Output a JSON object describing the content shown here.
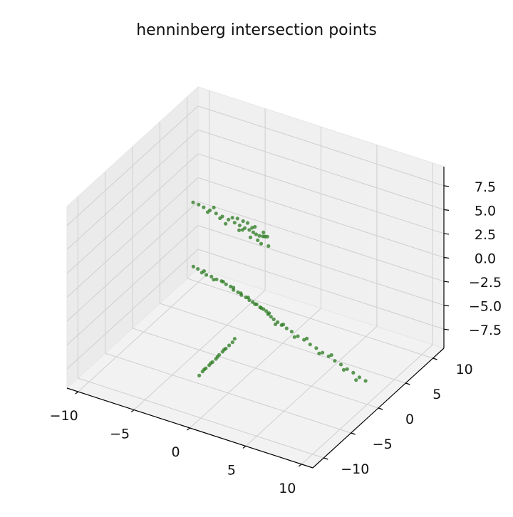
{
  "chart_data": {
    "type": "scatter",
    "title": "henninberg intersection points",
    "xlabel": "",
    "ylabel": "",
    "zlabel": "",
    "projection": "3d",
    "grid": true,
    "marker_color": "#2a7a1f",
    "xlim": [
      -11,
      11
    ],
    "ylim": [
      -12,
      12
    ],
    "zlim": [
      -9.5,
      9.5
    ],
    "x_ticks": [
      "−10",
      "−5",
      "0",
      "5",
      "10"
    ],
    "x_tick_values": [
      -10,
      -5,
      0,
      5,
      10
    ],
    "y_ticks": [
      "−10",
      "−5",
      "0",
      "5",
      "10"
    ],
    "y_tick_values": [
      -10,
      -5,
      0,
      5,
      10
    ],
    "z_ticks": [
      "−7.5",
      "−5.0",
      "−2.5",
      "0.0",
      "2.5",
      "5.0",
      "7.5"
    ],
    "z_tick_values": [
      -7.5,
      -5,
      -2.5,
      0,
      2.5,
      5,
      7.5
    ],
    "series": [
      {
        "values": [
          [
            -10.2,
            9.5,
            -7.7
          ],
          [
            -9.6,
            9.1,
            -7.5
          ],
          [
            -9.0,
            8.6,
            -7.4
          ],
          [
            -8.4,
            8.2,
            -7.2
          ],
          [
            -7.8,
            7.9,
            -7.0
          ],
          [
            -7.2,
            7.6,
            -6.9
          ],
          [
            -6.6,
            7.3,
            -6.7
          ],
          [
            -6.0,
            6.9,
            -6.6
          ],
          [
            -5.4,
            6.5,
            -6.4
          ],
          [
            -4.9,
            6.0,
            -6.3
          ],
          [
            -4.3,
            5.6,
            -6.1
          ],
          [
            -3.8,
            5.2,
            -6.0
          ],
          [
            -3.2,
            4.8,
            -5.8
          ],
          [
            -2.7,
            4.4,
            -5.7
          ],
          [
            -2.2,
            4.0,
            -5.5
          ],
          [
            -1.7,
            3.7,
            -5.4
          ],
          [
            -1.2,
            3.3,
            -5.3
          ],
          [
            -0.7,
            2.9,
            -5.1
          ],
          [
            -0.3,
            2.6,
            -5.0
          ],
          [
            0.1,
            2.3,
            -4.9
          ],
          [
            -8.9,
            8.8,
            -7.3
          ],
          [
            -7.5,
            7.7,
            -7.1
          ],
          [
            -6.3,
            7.0,
            -6.5
          ],
          [
            -5.0,
            6.2,
            -6.2
          ],
          [
            -3.9,
            5.3,
            -5.9
          ],
          [
            -2.9,
            4.6,
            -5.6
          ],
          [
            -1.9,
            3.8,
            -5.5
          ],
          [
            -1.0,
            3.1,
            -5.2
          ],
          [
            -9.2,
            7.4,
            0.5
          ],
          [
            -8.6,
            7.2,
            0.6
          ],
          [
            -8.0,
            6.9,
            0.7
          ],
          [
            -7.3,
            6.6,
            0.8
          ],
          [
            -6.6,
            6.3,
            0.9
          ],
          [
            -5.9,
            6.0,
            1.0
          ],
          [
            -5.2,
            5.7,
            1.1
          ],
          [
            -4.5,
            5.4,
            1.2
          ],
          [
            -3.9,
            5.1,
            1.3
          ],
          [
            -3.3,
            4.8,
            1.4
          ],
          [
            -2.8,
            4.6,
            1.5
          ],
          [
            -2.3,
            4.3,
            1.6
          ],
          [
            -1.9,
            4.0,
            1.7
          ],
          [
            -1.5,
            3.8,
            1.8
          ],
          [
            -1.1,
            3.6,
            2.0
          ],
          [
            -0.8,
            3.4,
            2.2
          ],
          [
            -0.5,
            3.2,
            2.4
          ],
          [
            -7.6,
            6.8,
            0.4
          ],
          [
            -6.2,
            6.2,
            0.6
          ],
          [
            -4.8,
            5.6,
            1.5
          ],
          [
            -3.6,
            5.0,
            1.0
          ],
          [
            -2.5,
            4.5,
            1.9
          ],
          [
            -1.7,
            3.9,
            1.2
          ],
          [
            -1.0,
            3.5,
            2.5
          ],
          [
            -2.1,
            4.2,
            2.3
          ],
          [
            -3.0,
            4.7,
            2.1
          ],
          [
            -4.2,
            5.3,
            1.8
          ],
          [
            -5.5,
            5.8,
            0.5
          ],
          [
            -6.9,
            6.5,
            1.3
          ],
          [
            -0.3,
            3.0,
            1.6
          ],
          [
            -1.3,
            3.7,
            1.1
          ],
          [
            -2.6,
            4.4,
            0.9
          ],
          [
            -3.5,
            4.9,
            2.0
          ],
          [
            -4.0,
            5.2,
            0.7
          ],
          [
            -2.0,
            -6.2,
            -7.8
          ],
          [
            -1.8,
            -6.0,
            -7.4
          ],
          [
            -1.6,
            -5.8,
            -7.1
          ],
          [
            -1.4,
            -5.6,
            -6.8
          ],
          [
            -1.2,
            -5.4,
            -6.5
          ],
          [
            -1.0,
            -5.2,
            -6.2
          ],
          [
            -0.8,
            -5.0,
            -5.8
          ],
          [
            -0.6,
            -4.8,
            -5.5
          ],
          [
            -0.4,
            -4.6,
            -5.2
          ],
          [
            -0.2,
            -4.4,
            -4.9
          ],
          [
            0.0,
            -4.2,
            -4.6
          ],
          [
            0.1,
            -4.0,
            -4.3
          ],
          [
            -1.7,
            -5.9,
            -7.2
          ],
          [
            -1.3,
            -5.5,
            -6.6
          ],
          [
            -0.9,
            -5.1,
            -6.0
          ],
          [
            -0.5,
            -4.7,
            -5.3
          ],
          [
            10.2,
            -0.7,
            -6.6
          ],
          [
            9.6,
            -0.6,
            -6.5
          ],
          [
            9.0,
            -0.5,
            -6.3
          ],
          [
            8.4,
            -0.4,
            -6.2
          ],
          [
            7.8,
            -0.3,
            -6.0
          ],
          [
            7.2,
            -0.2,
            -5.9
          ],
          [
            6.6,
            -0.1,
            -5.7
          ],
          [
            6.0,
            0.0,
            -5.6
          ],
          [
            5.4,
            0.1,
            -5.4
          ],
          [
            4.8,
            0.2,
            -5.3
          ],
          [
            4.2,
            0.3,
            -5.1
          ],
          [
            3.6,
            0.4,
            -5.0
          ],
          [
            3.0,
            0.5,
            -4.8
          ],
          [
            2.5,
            0.6,
            -4.7
          ],
          [
            2.0,
            0.7,
            -4.6
          ],
          [
            1.6,
            0.8,
            -4.5
          ],
          [
            1.2,
            0.9,
            -4.4
          ],
          [
            0.9,
            1.0,
            -4.3
          ],
          [
            0.6,
            1.1,
            -4.2
          ],
          [
            9.3,
            -0.6,
            -6.9
          ],
          [
            8.1,
            -0.4,
            -6.4
          ],
          [
            6.9,
            -0.2,
            -5.4
          ],
          [
            5.7,
            0.0,
            -5.8
          ],
          [
            4.5,
            0.2,
            -4.8
          ],
          [
            3.3,
            0.4,
            -5.2
          ],
          [
            2.2,
            0.6,
            -4.4
          ],
          [
            1.4,
            0.8,
            -4.8
          ]
        ]
      }
    ]
  }
}
